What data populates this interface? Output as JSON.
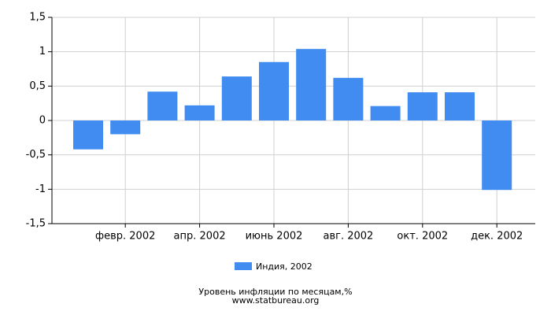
{
  "chart_data": {
    "type": "bar",
    "categories": [
      null,
      "февр. 2002",
      null,
      "апр. 2002",
      null,
      "июнь 2002",
      null,
      "авг. 2002",
      null,
      "окт. 2002",
      null,
      "дек. 2002"
    ],
    "series": [
      {
        "name": "Индия, 2002",
        "color": "#418cf0",
        "values": [
          -0.42,
          -0.2,
          0.42,
          0.22,
          0.64,
          0.85,
          1.04,
          0.62,
          0.21,
          0.41,
          0.41,
          -1.01
        ]
      }
    ],
    "ylim": [
      -1.5,
      1.5
    ],
    "yticks": [
      {
        "value": -1.5,
        "label": "-1,5"
      },
      -1,
      {
        "value": -0.5,
        "label": "-0,5"
      },
      0,
      {
        "value": 0.5,
        "label": "0,5"
      },
      1,
      {
        "value": 1.5,
        "label": "1,5"
      }
    ],
    "grid": true,
    "footer": [
      "Уровень инфляции по месяцам,%",
      "www.statbureau.org"
    ]
  }
}
